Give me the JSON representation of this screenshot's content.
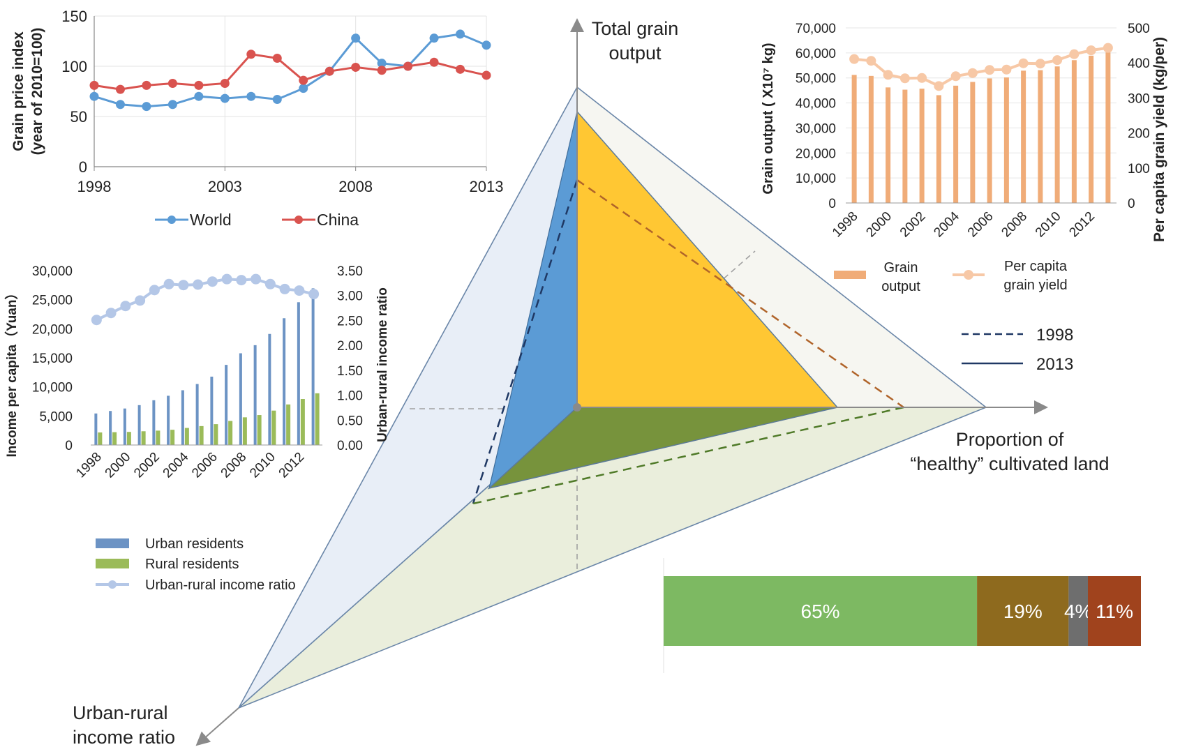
{
  "diagram": {
    "axis_labels": {
      "grain": [
        "Total grain",
        "output"
      ],
      "land": [
        "Proportion of",
        "“healthy” cultivated land"
      ],
      "income": [
        "Urban-rural",
        "income ratio"
      ]
    },
    "legend": {
      "y1998": "1998",
      "y2013": "2013"
    },
    "colors": {
      "blue_face": "#5B9BD5",
      "yellow_face": "#FFC733",
      "green_face": "#77933C",
      "back_left": "#E8EEF7",
      "back_right": "#F6F6F1",
      "back_bottom": "#EAEEDC",
      "grain_dash": "#1F3864",
      "land_dash": "#B0642A",
      "income_dash": "#4F7A28"
    }
  },
  "chart_data": [
    {
      "type": "line",
      "ylabel": [
        "Grain price index",
        "(year of 2010=100)"
      ],
      "xlabel": "",
      "ylim": [
        0,
        150
      ],
      "yticks": [
        "0",
        "50",
        "100",
        "150"
      ],
      "xticks": [
        "1998",
        "2003",
        "2008",
        "2013"
      ],
      "x": [
        1998,
        1999,
        2000,
        2001,
        2002,
        2003,
        2004,
        2005,
        2006,
        2007,
        2008,
        2009,
        2010,
        2011,
        2012,
        2013
      ],
      "series": [
        {
          "name": "World",
          "color": "#5B9BD5",
          "values": [
            70,
            62,
            60,
            62,
            70,
            68,
            70,
            67,
            78,
            95,
            128,
            103,
            100,
            128,
            132,
            121
          ]
        },
        {
          "name": "China",
          "color": "#D9534F",
          "values": [
            81,
            77,
            81,
            83,
            81,
            83,
            112,
            108,
            86,
            95,
            99,
            96,
            100,
            104,
            97,
            91
          ]
        }
      ]
    },
    {
      "type": "bar",
      "ylabel": "Grain output ( X10⁷ kg)",
      "y2label": "Per capita grain yield (kg/per)",
      "ylim": [
        0,
        70000
      ],
      "y2lim": [
        0,
        500
      ],
      "yticks": [
        "0",
        "10,000",
        "20,000",
        "30,000",
        "40,000",
        "50,000",
        "60,000",
        "70,000"
      ],
      "y2ticks": [
        "0",
        "100",
        "200",
        "300",
        "400",
        "500"
      ],
      "xticks": [
        "1998",
        "2000",
        "2002",
        "2004",
        "2006",
        "2008",
        "2010",
        "2012"
      ],
      "x": [
        1998,
        1999,
        2000,
        2001,
        2002,
        2003,
        2004,
        2005,
        2006,
        2007,
        2008,
        2009,
        2010,
        2011,
        2012,
        2013
      ],
      "series": [
        {
          "name": [
            "Grain",
            "output"
          ],
          "color": "#F0AC78",
          "values": [
            51200,
            50800,
            46200,
            45300,
            45700,
            43100,
            46900,
            48400,
            49800,
            50200,
            52900,
            53100,
            54600,
            57100,
            58900,
            60200
          ]
        },
        {
          "name": [
            "Per capita",
            "grain yield"
          ],
          "color": "#F7C8A6",
          "values": [
            411,
            406,
            366,
            356,
            357,
            334,
            362,
            371,
            380,
            381,
            399,
            398,
            408,
            425,
            436,
            443
          ]
        }
      ]
    },
    {
      "type": "bar",
      "ylabel": "Income per capita（Yuan）",
      "y2label": "Urban-rural income ratio",
      "ylim": [
        0,
        30000
      ],
      "y2lim": [
        0,
        3.5
      ],
      "yticks": [
        "0",
        "5,000",
        "10,000",
        "15,000",
        "20,000",
        "25,000",
        "30,000"
      ],
      "y2ticks": [
        "0.00",
        "0.50",
        "1.00",
        "1.50",
        "2.00",
        "2.50",
        "3.00",
        "3.50"
      ],
      "xticks": [
        "1998",
        "2000",
        "2002",
        "2004",
        "2006",
        "2008",
        "2010",
        "2012"
      ],
      "x": [
        1998,
        1999,
        2000,
        2001,
        2002,
        2003,
        2004,
        2005,
        2006,
        2007,
        2008,
        2009,
        2010,
        2011,
        2012,
        2013
      ],
      "series": [
        {
          "name": "Urban residents",
          "color": "#6C93C4",
          "values": [
            5425,
            5854,
            6280,
            6860,
            7703,
            8472,
            9422,
            10493,
            11760,
            13786,
            15781,
            17175,
            19109,
            21810,
            24565,
            26955
          ]
        },
        {
          "name": "Rural residents",
          "color": "#9BBB59",
          "values": [
            2162,
            2210,
            2253,
            2366,
            2476,
            2622,
            2936,
            3255,
            3587,
            4140,
            4761,
            5153,
            5919,
            6977,
            7917,
            8896
          ]
        },
        {
          "name": "Urban-rural  income ratio",
          "color": "#B4C7E7",
          "values": [
            2.51,
            2.65,
            2.79,
            2.9,
            3.11,
            3.23,
            3.21,
            3.22,
            3.28,
            3.33,
            3.31,
            3.33,
            3.23,
            3.13,
            3.1,
            3.03
          ]
        }
      ]
    },
    {
      "type": "stacked-bar",
      "series": [
        {
          "label": "65%",
          "value": 65,
          "color": "#7DB962"
        },
        {
          "label": "19%",
          "value": 19,
          "color": "#8E6A1E"
        },
        {
          "label": "4%",
          "value": 4,
          "color": "#6E6E6E"
        },
        {
          "label": "11%",
          "value": 11,
          "color": "#A0431D"
        }
      ]
    }
  ]
}
